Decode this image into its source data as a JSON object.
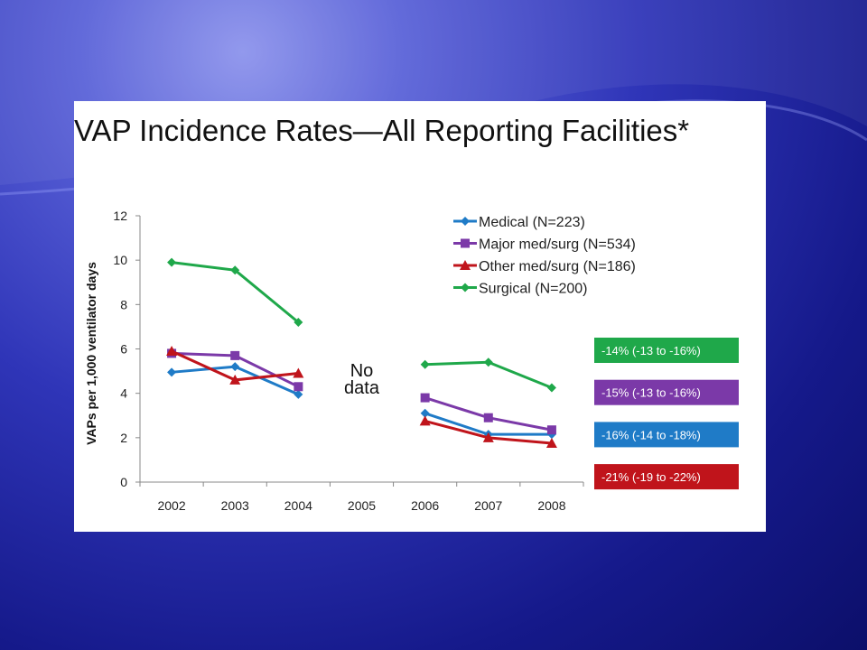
{
  "slide": {
    "title": "VAP Incidence Rates—All Reporting Facilities*"
  },
  "chart_data": {
    "type": "line",
    "x": [
      "2002",
      "2003",
      "2004",
      "2005",
      "2006",
      "2007",
      "2008"
    ],
    "ylabel": "VAPs per 1,000 ventilator days",
    "xlabel": "",
    "ylim": [
      0,
      12
    ],
    "yticks": [
      0,
      2,
      4,
      6,
      8,
      10,
      12
    ],
    "grid": false,
    "legend_position": "top-right",
    "annotation": "No\ndata",
    "series": [
      {
        "name": "Medical  (N=223)",
        "color": "#1f7bc7",
        "marker": "diamond",
        "values": [
          4.95,
          5.2,
          3.95,
          null,
          3.1,
          2.15,
          2.15
        ]
      },
      {
        "name": "Major med/surg (N=534)",
        "color": "#7b39a8",
        "marker": "square",
        "values": [
          5.8,
          5.7,
          4.3,
          null,
          3.8,
          2.9,
          2.35
        ]
      },
      {
        "name": "Other med/surg (N=186)",
        "color": "#c0141b",
        "marker": "triangle",
        "values": [
          5.9,
          4.6,
          4.9,
          null,
          2.75,
          2.0,
          1.75
        ]
      },
      {
        "name": "Surgical (N=200)",
        "color": "#1fa84a",
        "marker": "diamond",
        "values": [
          9.9,
          9.55,
          7.2,
          null,
          5.3,
          5.4,
          4.25
        ]
      }
    ],
    "change_labels": [
      {
        "text": "-14% (-13 to -16%)",
        "color": "#1fa84a"
      },
      {
        "text": "-15% (-13 to -16%)",
        "color": "#7b39a8"
      },
      {
        "text": "-16% (-14 to -18%)",
        "color": "#1f7bc7"
      },
      {
        "text": "-21% (-19 to -22%)",
        "color": "#c0141b"
      }
    ]
  }
}
